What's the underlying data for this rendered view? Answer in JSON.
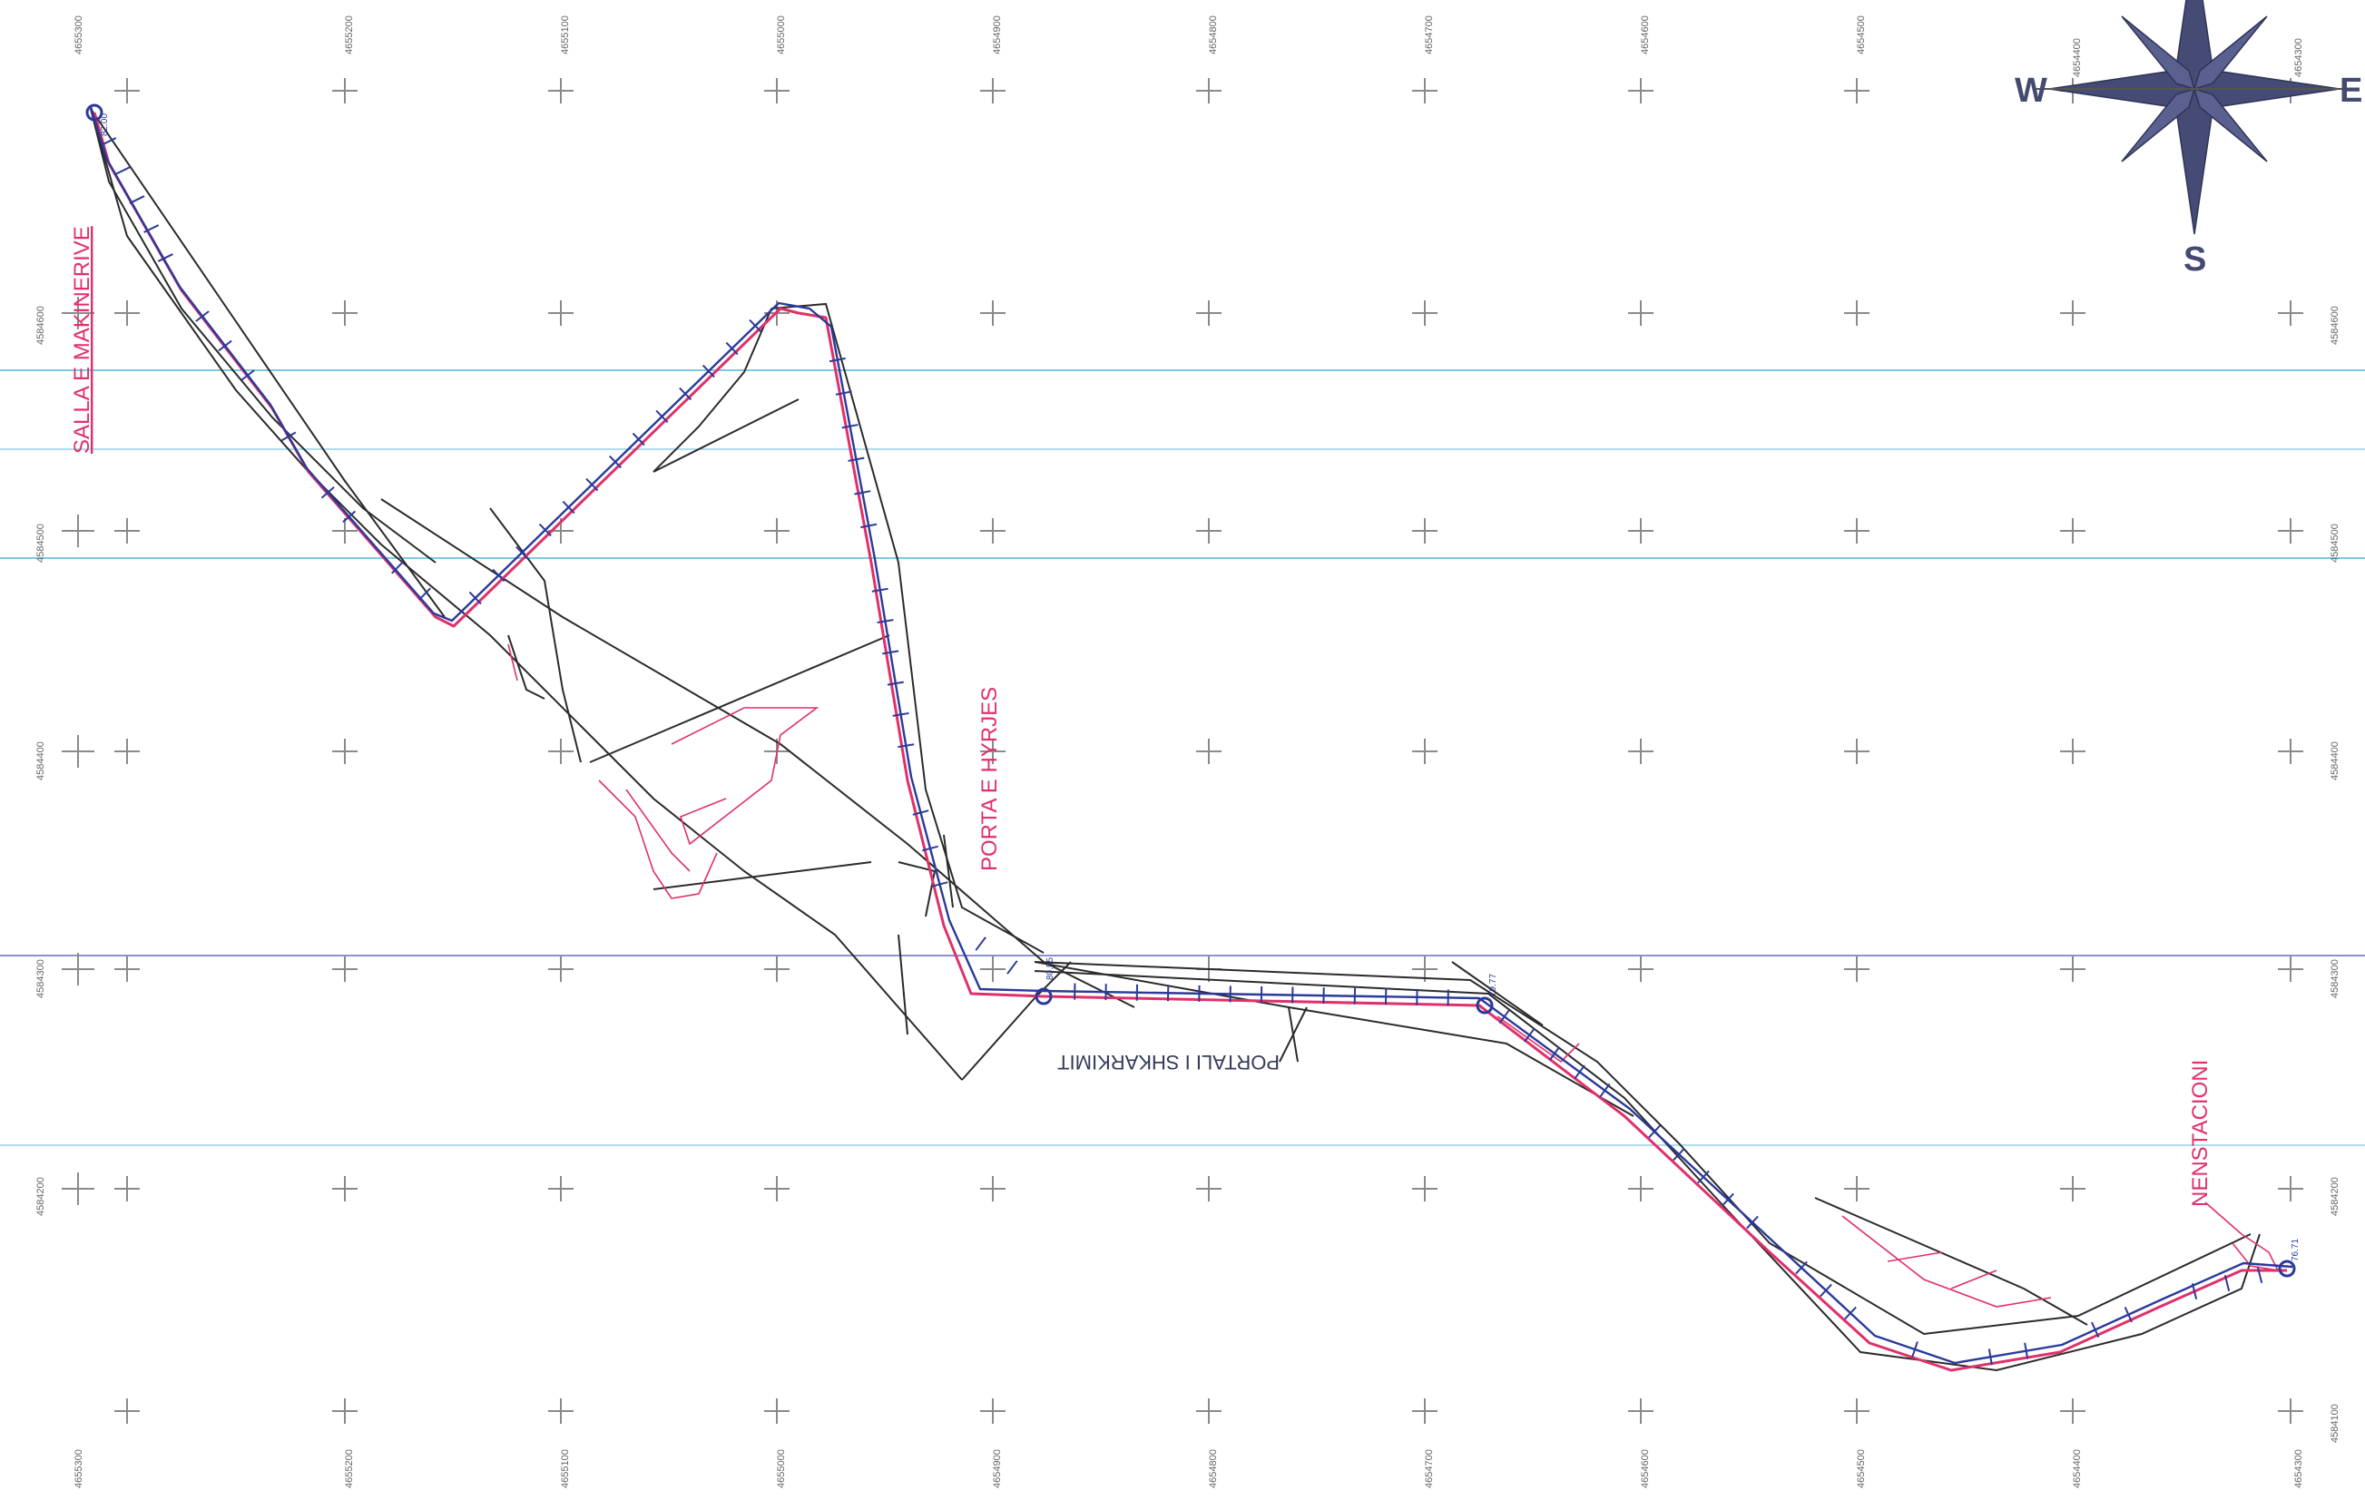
{
  "labels": {
    "salla": "SALLA E MAKINERIVE",
    "porta": "PORTA E HYRJES",
    "portali": "PORTALI I SHKARKIMIT",
    "nenstacioni": "NENSTACIONI"
  },
  "compass": {
    "west": "W",
    "east": "E",
    "south": "S"
  },
  "grid": {
    "top_ticks": [
      "4655300",
      "4655200",
      "4655100",
      "4655000",
      "4654900",
      "4654800",
      "4654700",
      "4654600",
      "4654500",
      "4654400",
      "4654300"
    ],
    "bottom_ticks": [
      "4655300",
      "4655200",
      "4655100",
      "4655000",
      "4654900",
      "4654800",
      "4654700",
      "4654600",
      "4654500",
      "4654400",
      "4654300"
    ],
    "left_ticks": [
      "4584600",
      "4584500",
      "4584400",
      "4584300",
      "4584200"
    ],
    "right_ticks": [
      "4584600",
      "4584500",
      "4584400",
      "4584300",
      "4584200",
      "4584100"
    ]
  },
  "points": {
    "p1": "82.00",
    "p2": "80.55",
    "p3": "79.77",
    "p4": "76.71"
  },
  "colors": {
    "route_pink": "#e0306a",
    "route_blue": "#2a3a9a",
    "outline": "#2b2b2b",
    "cyan_line": "#7fc8e0",
    "compass": "#454b75"
  }
}
